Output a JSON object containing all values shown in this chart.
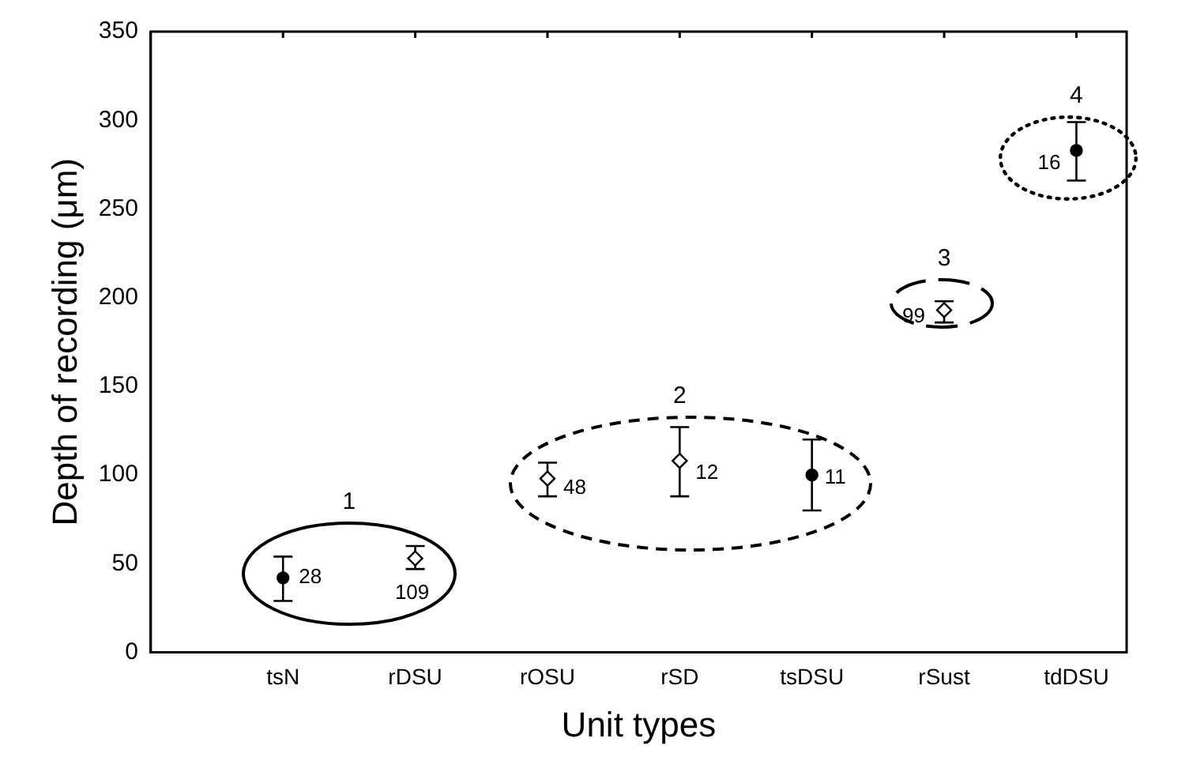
{
  "chart_data": {
    "type": "scatter",
    "xlabel": "Unit types",
    "ylabel": "Depth of recording (μm)",
    "categories": [
      null,
      "tsN",
      "rDSU",
      "rOSU",
      "rSD",
      "tsDSU",
      "rSust",
      "tdDSU"
    ],
    "series": [
      {
        "color": "#000000",
        "marker": "circle",
        "values": [
          null,
          42,
          null,
          null,
          null,
          100,
          null,
          283
        ],
        "errors": [
          null,
          [
            29,
            54
          ],
          null,
          null,
          null,
          [
            80,
            120
          ],
          null,
          [
            266,
            299
          ]
        ]
      },
      {
        "color": "#000000",
        "marker": "diamond",
        "values": [
          null,
          null,
          53,
          98,
          108,
          null,
          193,
          null
        ],
        "errors": [
          null,
          null,
          [
            47,
            60
          ],
          [
            88,
            107
          ],
          [
            88,
            127
          ],
          null,
          [
            186,
            198
          ],
          null
        ]
      }
    ],
    "ylim": [
      0,
      350
    ],
    "yticks": [
      0,
      50,
      100,
      150,
      200,
      250,
      300,
      350
    ],
    "grid": false,
    "legend": false,
    "annotations": [
      {
        "text": "28",
        "x": "tsN",
        "y": 42
      },
      {
        "text": "109",
        "x": "rDSU",
        "y": 53
      },
      {
        "text": "48",
        "x": "rOSU",
        "y": 98
      },
      {
        "text": "12",
        "x": "rSD",
        "y": 108
      },
      {
        "text": "11",
        "x": "tsDSU",
        "y": 100
      },
      {
        "text": "99",
        "x": "rSust",
        "y": 193
      },
      {
        "text": "16",
        "x": "tdDSU",
        "y": 283
      },
      "1",
      "2",
      "3",
      "4"
    ]
  }
}
